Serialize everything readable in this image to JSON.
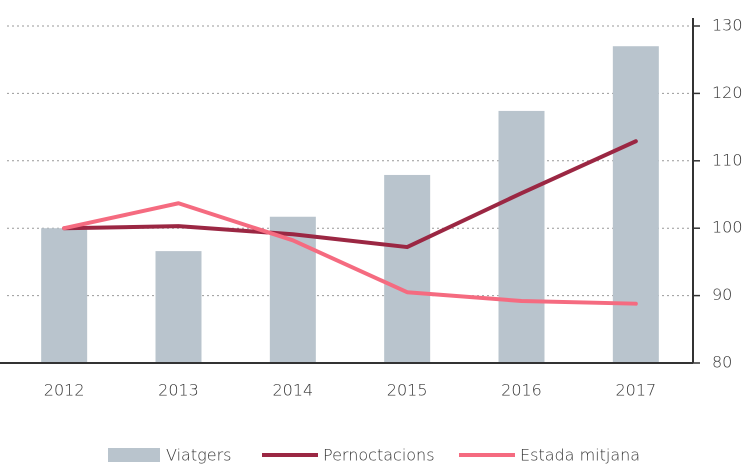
{
  "chart_data": {
    "type": "bar",
    "categories": [
      "2012",
      "2013",
      "2014",
      "2015",
      "2016",
      "2017"
    ],
    "series": [
      {
        "name": "Viatgers",
        "type": "bar",
        "color": "#b9c4cd",
        "values": [
          100,
          96.6,
          101.7,
          107.9,
          117.4,
          127.0
        ]
      },
      {
        "name": "Pernoctacions",
        "type": "line",
        "color": "#9b2743",
        "values": [
          100,
          100.3,
          99.1,
          97.2,
          105.2,
          112.9
        ]
      },
      {
        "name": "Estada mitjana",
        "type": "line",
        "color": "#f56b80",
        "values": [
          100,
          103.7,
          98.2,
          90.5,
          89.2,
          88.8
        ]
      }
    ],
    "ylim": [
      80,
      130
    ],
    "yticks": [
      80,
      90,
      100,
      110,
      120,
      130
    ],
    "grid": true
  }
}
